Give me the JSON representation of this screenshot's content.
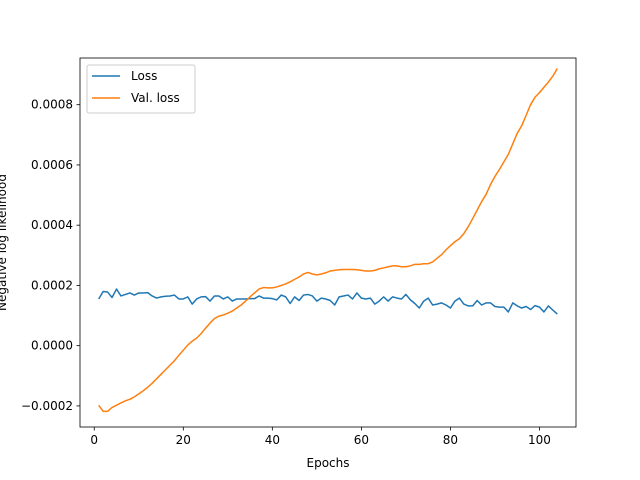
{
  "chart_data": {
    "type": "line",
    "title": "",
    "xlabel": "Epochs",
    "ylabel": "Negative log likelihood",
    "xlim": [
      -3.2,
      108.2
    ],
    "ylim": [
      -0.00027,
      0.000955
    ],
    "xticks": [
      0,
      20,
      40,
      60,
      80,
      100
    ],
    "xtick_labels": [
      "0",
      "20",
      "40",
      "60",
      "80",
      "100"
    ],
    "yticks": [
      -0.0002,
      0.0,
      0.0002,
      0.0004,
      0.0006,
      0.0008
    ],
    "ytick_labels": [
      "−0.0002",
      "0.0000",
      "0.0002",
      "0.0004",
      "0.0006",
      "0.0008"
    ],
    "grid": false,
    "legend_position": "upper left",
    "series": [
      {
        "name": "Loss",
        "color": "#1f77b4",
        "x": [
          1,
          2,
          3,
          4,
          5,
          6,
          7,
          8,
          9,
          10,
          11,
          12,
          13,
          14,
          15,
          16,
          17,
          18,
          19,
          20,
          21,
          22,
          23,
          24,
          25,
          26,
          27,
          28,
          29,
          30,
          31,
          32,
          33,
          34,
          35,
          36,
          37,
          38,
          39,
          40,
          41,
          42,
          43,
          44,
          45,
          46,
          47,
          48,
          49,
          50,
          51,
          52,
          53,
          54,
          55,
          56,
          57,
          58,
          59,
          60,
          61,
          62,
          63,
          64,
          65,
          66,
          67,
          68,
          69,
          70,
          71,
          72,
          73,
          74,
          75,
          76,
          77,
          78,
          79,
          80,
          81,
          82,
          83,
          84,
          85,
          86,
          87,
          88,
          89,
          90,
          91,
          92,
          93,
          94,
          95,
          96,
          97,
          98,
          99,
          100,
          101,
          102,
          103,
          104
        ],
        "values": [
          0.000155,
          0.00018,
          0.000178,
          0.00016,
          0.000188,
          0.000165,
          0.00017,
          0.000175,
          0.000168,
          0.000175,
          0.000175,
          0.000176,
          0.000165,
          0.000158,
          0.000162,
          0.000164,
          0.000165,
          0.000168,
          0.000155,
          0.000155,
          0.000162,
          0.000138,
          0.000155,
          0.000162,
          0.000163,
          0.000148,
          0.000165,
          0.000165,
          0.000155,
          0.000162,
          0.000148,
          0.000155,
          0.000155,
          0.000155,
          0.000156,
          0.000156,
          0.000165,
          0.000158,
          0.000158,
          0.000156,
          0.000152,
          0.000168,
          0.000162,
          0.00014,
          0.000162,
          0.00015,
          0.000168,
          0.00017,
          0.000165,
          0.000148,
          0.000158,
          0.000155,
          0.00015,
          0.000135,
          0.000162,
          0.000165,
          0.000168,
          0.000155,
          0.000175,
          0.000158,
          0.000155,
          0.000158,
          0.000138,
          0.000148,
          0.000162,
          0.000148,
          0.000162,
          0.000158,
          0.000155,
          0.00017,
          0.000152,
          0.00014,
          0.000125,
          0.000148,
          0.000158,
          0.000135,
          0.000138,
          0.000142,
          0.000135,
          0.000125,
          0.000148,
          0.000158,
          0.000138,
          0.000132,
          0.000132,
          0.00015,
          0.000135,
          0.000142,
          0.000142,
          0.00013,
          0.000128,
          0.000128,
          0.000112,
          0.000142,
          0.000132,
          0.000125,
          0.00013,
          0.00012,
          0.000133,
          0.000128,
          0.000112,
          0.000132,
          0.000118,
          0.000105
        ]
      },
      {
        "name": "Val. loss",
        "color": "#ff7f0e",
        "x": [
          1,
          2,
          3,
          4,
          5,
          6,
          7,
          8,
          9,
          10,
          11,
          12,
          13,
          14,
          15,
          16,
          17,
          18,
          19,
          20,
          21,
          22,
          23,
          24,
          25,
          26,
          27,
          28,
          29,
          30,
          31,
          32,
          33,
          34,
          35,
          36,
          37,
          38,
          39,
          40,
          41,
          42,
          43,
          44,
          45,
          46,
          47,
          48,
          49,
          50,
          51,
          52,
          53,
          54,
          55,
          56,
          57,
          58,
          59,
          60,
          61,
          62,
          63,
          64,
          65,
          66,
          67,
          68,
          69,
          70,
          71,
          72,
          73,
          74,
          75,
          76,
          77,
          78,
          79,
          80,
          81,
          82,
          83,
          84,
          85,
          86,
          87,
          88,
          89,
          90,
          91,
          92,
          93,
          94,
          95,
          96,
          97,
          98,
          99,
          100,
          101,
          102,
          103,
          104
        ],
        "values": [
          -0.000198,
          -0.000218,
          -0.000218,
          -0.000205,
          -0.000198,
          -0.00019,
          -0.000183,
          -0.000178,
          -0.00017,
          -0.00016,
          -0.00015,
          -0.000138,
          -0.000125,
          -0.00011,
          -9.5e-05,
          -8e-05,
          -6.5e-05,
          -5e-05,
          -3.2e-05,
          -1.5e-05,
          2e-06,
          1.5e-05,
          2.5e-05,
          4e-05,
          5.8e-05,
          7.5e-05,
          9e-05,
          9.8e-05,
          0.000102,
          0.000108,
          0.000115,
          0.000125,
          0.000135,
          0.000148,
          0.000162,
          0.000175,
          0.000188,
          0.000193,
          0.000192,
          0.000192,
          0.000195,
          0.0002,
          0.000205,
          0.000212,
          0.00022,
          0.000228,
          0.000238,
          0.000243,
          0.000238,
          0.000235,
          0.000238,
          0.000242,
          0.000248,
          0.00025,
          0.000252,
          0.000253,
          0.000253,
          0.000253,
          0.000252,
          0.00025,
          0.000248,
          0.000248,
          0.00025,
          0.000255,
          0.000258,
          0.000262,
          0.000265,
          0.000265,
          0.000262,
          0.000262,
          0.000265,
          0.00027,
          0.00027,
          0.000272,
          0.000272,
          0.000278,
          0.00029,
          0.000302,
          0.000318,
          0.000332,
          0.000345,
          0.000355,
          0.000372,
          0.000395,
          0.000422,
          0.00045,
          0.000478,
          0.000502,
          0.000535,
          0.000562,
          0.000585,
          0.00061,
          0.000635,
          0.00067,
          0.000705,
          0.00073,
          0.000765,
          0.0008,
          0.000825,
          0.00084,
          0.000858,
          0.000875,
          0.000895,
          0.00092
        ]
      }
    ]
  }
}
